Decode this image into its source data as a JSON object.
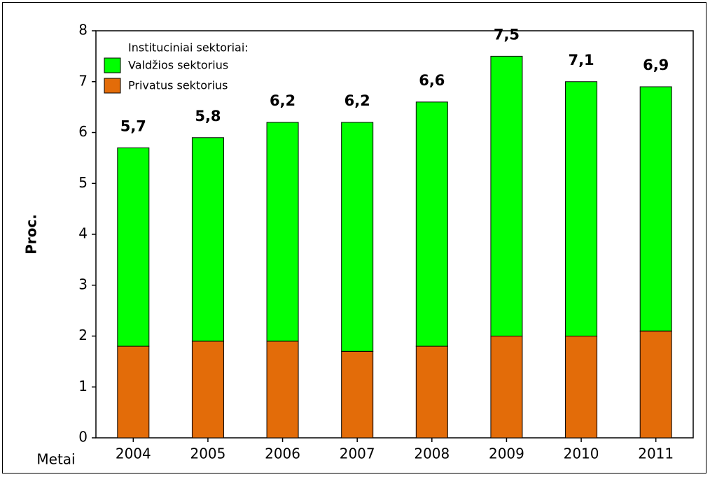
{
  "chart_data": {
    "type": "bar",
    "stacked": true,
    "categories": [
      "2004",
      "2005",
      "2006",
      "2007",
      "2008",
      "2009",
      "2010",
      "2011"
    ],
    "xlabel": "Metai",
    "ylabel": "Proc.",
    "ylim": [
      0,
      8
    ],
    "yticks": [
      "0",
      "1",
      "2",
      "3",
      "4",
      "5",
      "6",
      "7",
      "8"
    ],
    "series": [
      {
        "name": "Privatus sektorius",
        "color": "#e36c09",
        "values": [
          1.8,
          1.9,
          1.9,
          1.7,
          1.8,
          2.0,
          2.0,
          2.1
        ]
      },
      {
        "name": "Valdžios sektorius",
        "color": "#00ff00",
        "values": [
          3.9,
          4.0,
          4.3,
          4.5,
          4.8,
          5.5,
          5.0,
          4.8
        ]
      }
    ],
    "totals_labels": [
      "5,7",
      "5,8",
      "6,2",
      "6,2",
      "6,6",
      "7,5",
      "7,1",
      "6,9"
    ],
    "legend": {
      "title": "Instituciniai sektoriai:",
      "placement": "top-left",
      "entries": [
        "Valdžios sektorius",
        "Privatus sektorius"
      ]
    },
    "grid": false
  }
}
